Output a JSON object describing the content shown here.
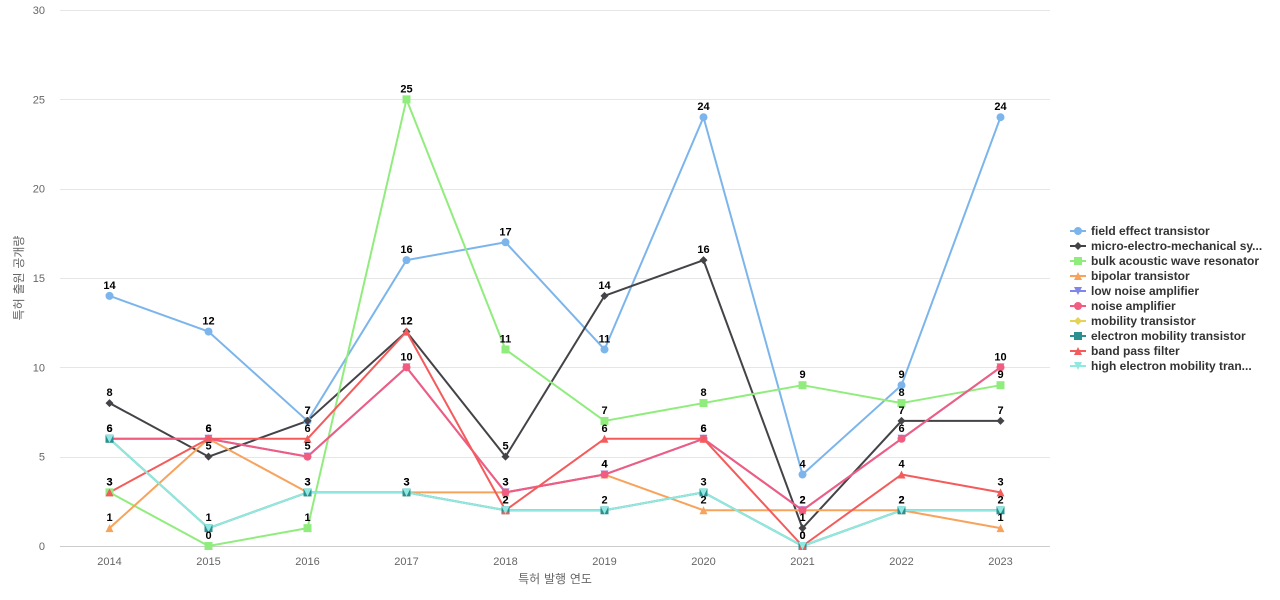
{
  "chart_data": {
    "type": "line",
    "xlabel": "특허 발행 연도",
    "ylabel": "특허 출원 공개량",
    "ylim": [
      0,
      30
    ],
    "yticks": [
      0,
      5,
      10,
      15,
      20,
      25,
      30
    ],
    "grid": true,
    "legend_position": "right",
    "data_labels": true,
    "categories": [
      "2014",
      "2015",
      "2016",
      "2017",
      "2018",
      "2019",
      "2020",
      "2021",
      "2022",
      "2023"
    ],
    "series": [
      {
        "name": "field effect transistor",
        "legend_label": "field effect transistor",
        "color": "#7cb5ec",
        "marker": "circle",
        "values": [
          14,
          12,
          7,
          16,
          17,
          11,
          24,
          4,
          9,
          24
        ]
      },
      {
        "name": "micro-electro-mechanical system",
        "legend_label": "micro-electro-mechanical sy...",
        "color": "#434348",
        "marker": "diamond",
        "values": [
          8,
          5,
          7,
          12,
          5,
          14,
          16,
          1,
          7,
          7
        ]
      },
      {
        "name": "bulk acoustic wave resonator",
        "legend_label": "bulk acoustic wave resonator",
        "color": "#90ed7d",
        "marker": "square",
        "values": [
          3,
          0,
          1,
          25,
          11,
          7,
          8,
          9,
          8,
          9
        ]
      },
      {
        "name": "bipolar transistor",
        "legend_label": "bipolar transistor",
        "color": "#f7a35c",
        "marker": "triangle",
        "values": [
          1,
          6,
          3,
          3,
          3,
          4,
          2,
          2,
          2,
          1
        ]
      },
      {
        "name": "low noise amplifier",
        "legend_label": "low noise amplifier",
        "color": "#8085e9",
        "marker": "triangle-down",
        "values": [
          6,
          6,
          5,
          10,
          3,
          4,
          6,
          2,
          6,
          10
        ]
      },
      {
        "name": "noise amplifier",
        "legend_label": "noise amplifier",
        "color": "#f15c80",
        "marker": "circle",
        "values": [
          6,
          6,
          5,
          10,
          3,
          4,
          6,
          2,
          6,
          10
        ]
      },
      {
        "name": "mobility transistor",
        "legend_label": "mobility transistor",
        "color": "#e4d354",
        "marker": "diamond",
        "values": [
          6,
          1,
          3,
          3,
          2,
          2,
          3,
          0,
          2,
          2
        ]
      },
      {
        "name": "electron mobility transistor",
        "legend_label": "electron mobility transistor",
        "color": "#2b908f",
        "marker": "square",
        "values": [
          6,
          1,
          3,
          3,
          2,
          2,
          3,
          0,
          2,
          2
        ]
      },
      {
        "name": "band pass filter",
        "legend_label": "band pass filter",
        "color": "#f45b5b",
        "marker": "triangle",
        "values": [
          3,
          6,
          6,
          12,
          2,
          6,
          6,
          0,
          4,
          3
        ]
      },
      {
        "name": "high electron mobility transistor",
        "legend_label": "high electron mobility tran...",
        "color": "#91e8e1",
        "marker": "triangle-down",
        "values": [
          6,
          1,
          3,
          3,
          2,
          2,
          3,
          0,
          2,
          2
        ]
      }
    ],
    "labeled_points": [
      {
        "series": 0,
        "indices": [
          0,
          1,
          2,
          3,
          4,
          5,
          6,
          7,
          8,
          9
        ]
      },
      {
        "series": 1,
        "indices": [
          0,
          1,
          2,
          3,
          4,
          5,
          6,
          7,
          8,
          9
        ]
      },
      {
        "series": 2,
        "indices": [
          0,
          1,
          2,
          3,
          4,
          5,
          6,
          7,
          8,
          9
        ]
      },
      {
        "series": 3,
        "indices": [
          0,
          1,
          2,
          3,
          4,
          5,
          6,
          7,
          8,
          9
        ]
      },
      {
        "series": 5,
        "indices": [
          0,
          1,
          2,
          3,
          4,
          5,
          6,
          7,
          8,
          9
        ]
      },
      {
        "series": 8,
        "indices": [
          0,
          1,
          2,
          3,
          4,
          5,
          6,
          7,
          8,
          9
        ]
      },
      {
        "series": 9,
        "indices": [
          0,
          1,
          2,
          3,
          4,
          5,
          6,
          7,
          8,
          9
        ]
      }
    ]
  }
}
